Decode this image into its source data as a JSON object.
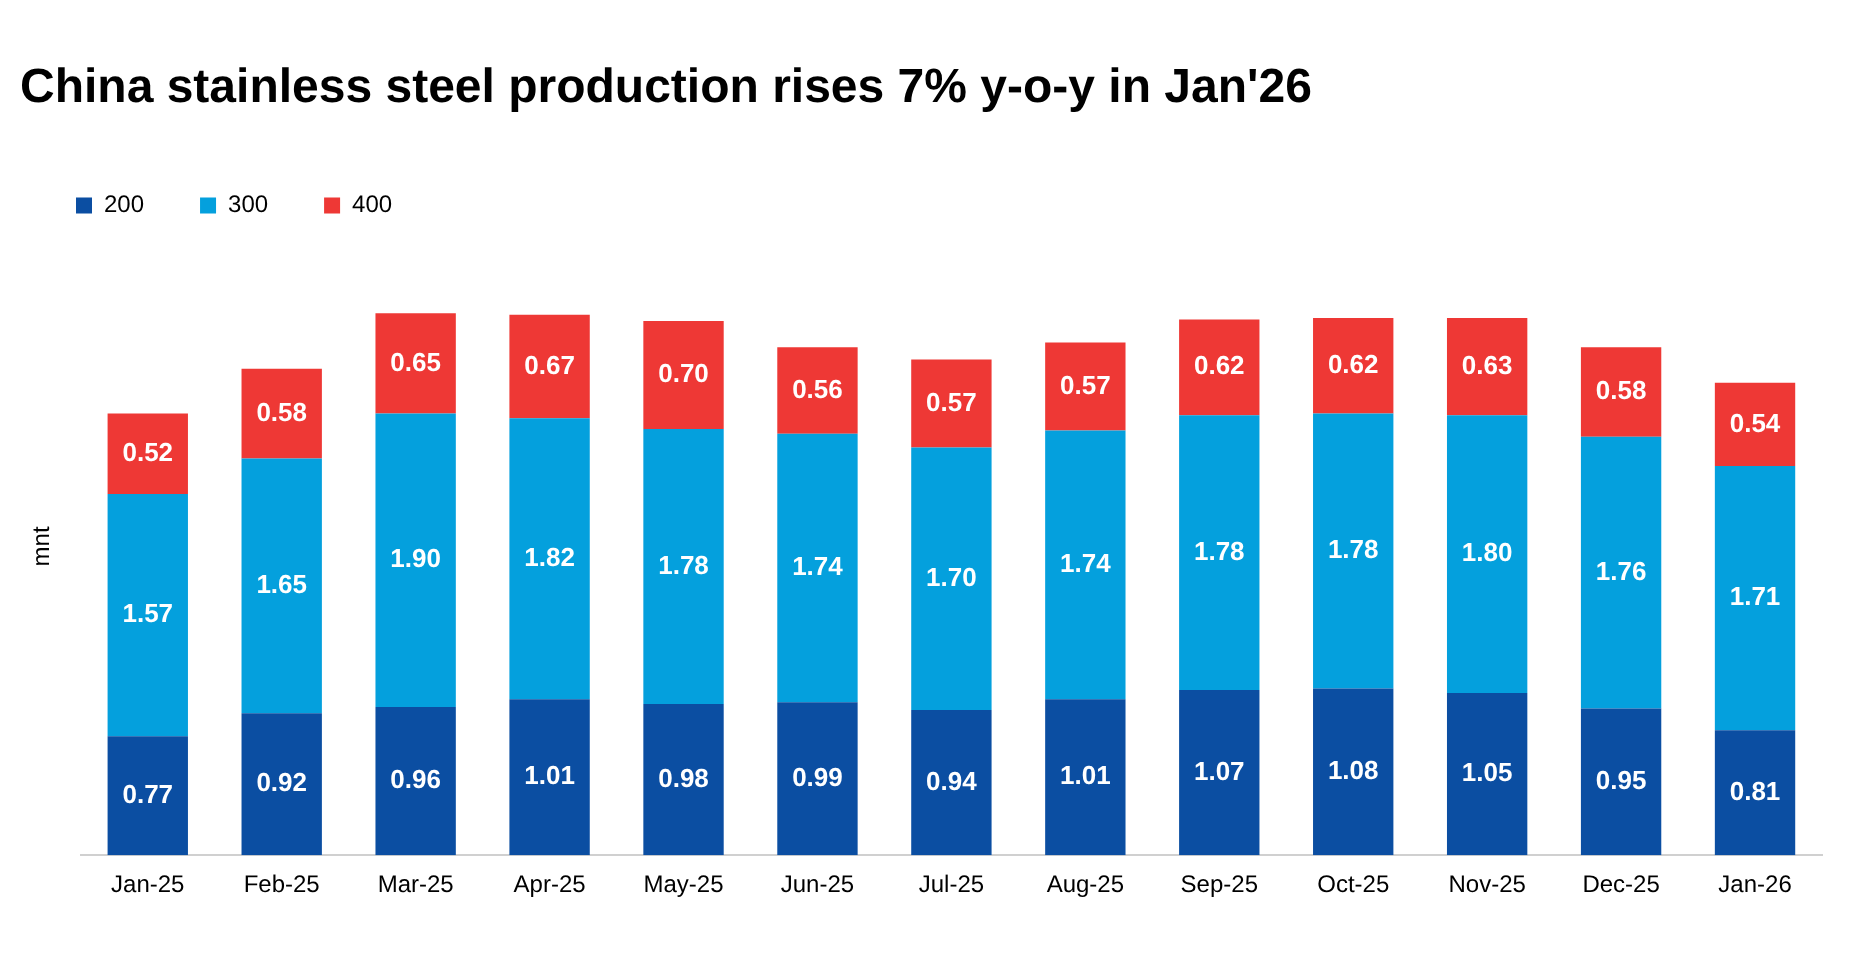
{
  "chart_data": {
    "type": "bar",
    "title": "China stainless steel production rises 7% y-o-y in Jan'26",
    "ylabel": "mnt",
    "stacked": true,
    "legend": "top left",
    "grid": false,
    "categories": [
      "Jan-25",
      "Feb-25",
      "Mar-25",
      "Apr-25",
      "May-25",
      "Jun-25",
      "Jul-25",
      "Aug-25",
      "Sep-25",
      "Oct-25",
      "Nov-25",
      "Dec-25",
      "Jan-26"
    ],
    "series": [
      {
        "name": "200",
        "color": "#0b4ea2",
        "values": [
          0.77,
          0.92,
          0.96,
          1.01,
          0.98,
          0.99,
          0.94,
          1.01,
          1.07,
          1.08,
          1.05,
          0.95,
          0.81
        ],
        "value_labels": [
          "0.77",
          "0.92",
          "0.96",
          "1.01",
          "0.98",
          "0.99",
          "0.94",
          "1.01",
          "1.07",
          "1.08",
          "1.05",
          "0.95",
          "0.81"
        ]
      },
      {
        "name": "300",
        "color": "#04a0dd",
        "values": [
          1.57,
          1.65,
          1.9,
          1.82,
          1.78,
          1.74,
          1.7,
          1.74,
          1.78,
          1.78,
          1.8,
          1.76,
          1.71
        ],
        "value_labels": [
          "1.57",
          "1.65",
          "1.90",
          "1.82",
          "1.78",
          "1.74",
          "1.70",
          "1.74",
          "1.78",
          "1.78",
          "1.80",
          "1.76",
          "1.71"
        ]
      },
      {
        "name": "400",
        "color": "#ee3835",
        "values": [
          0.52,
          0.58,
          0.65,
          0.67,
          0.7,
          0.56,
          0.57,
          0.57,
          0.62,
          0.62,
          0.63,
          0.58,
          0.54
        ],
        "value_labels": [
          "0.52",
          "0.58",
          "0.65",
          "0.67",
          "0.70",
          "0.56",
          "0.57",
          "0.57",
          "0.62",
          "0.62",
          "0.63",
          "0.58",
          "0.54"
        ]
      }
    ]
  }
}
